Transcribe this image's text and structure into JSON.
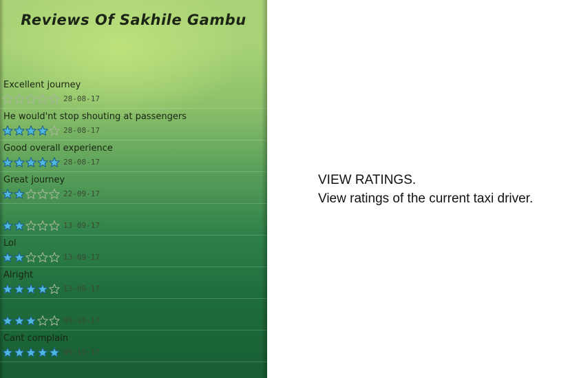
{
  "title": "Reviews Of Sakhile Gambu",
  "reviews": [
    {
      "comment": "Excellent journey",
      "rating": 0,
      "date": "28-08-17"
    },
    {
      "comment": "He would'nt stop shouting at passengers",
      "rating": 4,
      "date": "28-08-17"
    },
    {
      "comment": "Good overall experience",
      "rating": 5,
      "date": "28-08-17"
    },
    {
      "comment": "Great journey",
      "rating": 2,
      "date": "22-09-17"
    },
    {
      "comment": "",
      "rating": 2,
      "date": "13-09-17"
    },
    {
      "comment": "Lol",
      "rating": 2,
      "date": "13-09-17"
    },
    {
      "comment": "Alright",
      "rating": 4,
      "date": "13-09-17"
    },
    {
      "comment": "",
      "rating": 3,
      "date": "09-10-17"
    },
    {
      "comment": "Cant complain",
      "rating": 5,
      "date": "09-10-17"
    }
  ],
  "caption": {
    "line1": "VIEW RATINGS.",
    "line2": "View ratings of the current taxi driver."
  },
  "colors": {
    "star_filled": "#4fb6e0",
    "star_empty": "#a7b79a"
  }
}
